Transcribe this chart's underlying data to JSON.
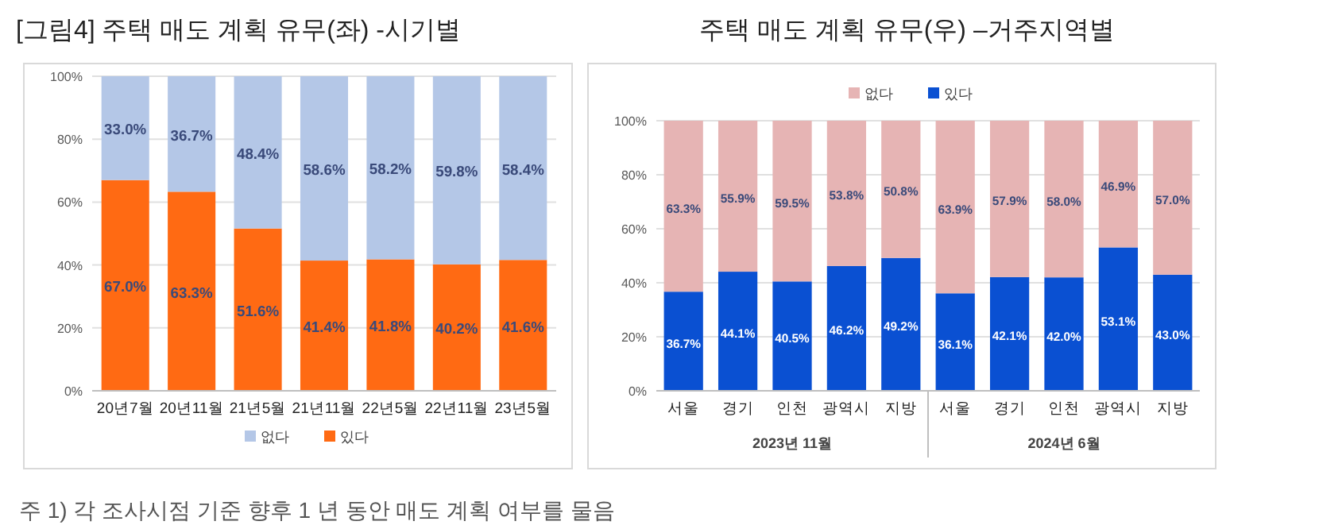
{
  "chart_data": [
    {
      "type": "bar",
      "stacked": true,
      "title": "[그림4] 주택 매도 계획 유무(좌) -시기별",
      "categories": [
        "20년7월",
        "20년11월",
        "21년5월",
        "21년11월",
        "22년5월",
        "22년11월",
        "23년5월"
      ],
      "series": [
        {
          "name": "있다",
          "color": "#ff6a13",
          "values": [
            67.0,
            63.3,
            51.6,
            41.4,
            41.8,
            40.2,
            41.6
          ],
          "value_labels": [
            "67.0%",
            "63.3%",
            "51.6%",
            "41.4%",
            "41.8%",
            "40.2%",
            "41.6%"
          ]
        },
        {
          "name": "없다",
          "color": "#b4c7e7",
          "values": [
            33.0,
            36.7,
            48.4,
            58.6,
            58.2,
            59.8,
            58.4
          ],
          "value_labels": [
            "33.0%",
            "36.7%",
            "48.4%",
            "58.6%",
            "58.2%",
            "59.8%",
            "58.4%"
          ]
        }
      ],
      "ylim": [
        0,
        100
      ],
      "yticks": [
        {
          "value": 0,
          "label": "0%"
        },
        {
          "value": 20,
          "label": "20%"
        },
        {
          "value": 40,
          "label": "40%"
        },
        {
          "value": 60,
          "label": "60%"
        },
        {
          "value": 80,
          "label": "80%"
        },
        {
          "value": 100,
          "label": "100%"
        }
      ],
      "grid": "y",
      "legend": "bottom",
      "annotations": [
        "주 1) 각 조사시점 기준 향후 1 년 동안 매도 계획 여부를 물음"
      ]
    },
    {
      "type": "bar",
      "stacked": true,
      "title": "주택 매도 계획 유무(우) –거주지역별",
      "categories": [
        "서울",
        "경기",
        "인천",
        "광역시",
        "지방",
        "서울",
        "경기",
        "인천",
        "광역시",
        "지방"
      ],
      "series": [
        {
          "name": "있다",
          "color": "#0a50d2",
          "values": [
            36.7,
            44.1,
            40.5,
            46.2,
            49.2,
            36.1,
            42.1,
            42.0,
            53.1,
            43.0
          ],
          "value_labels": [
            "36.7%",
            "44.1%",
            "40.5%",
            "46.2%",
            "49.2%",
            "36.1%",
            "42.1%",
            "42.0%",
            "53.1%",
            "43.0%"
          ]
        },
        {
          "name": "없다",
          "color": "#e6b4b4",
          "values": [
            63.3,
            55.9,
            59.5,
            53.8,
            50.8,
            63.9,
            57.9,
            58.0,
            46.9,
            57.0
          ],
          "value_labels": [
            "63.3%",
            "55.9%",
            "59.5%",
            "53.8%",
            "50.8%",
            "63.9%",
            "57.9%",
            "58.0%",
            "46.9%",
            "57.0%"
          ]
        }
      ],
      "ylim": [
        0,
        100
      ],
      "yticks": [
        {
          "value": 0,
          "label": "0%"
        },
        {
          "value": 20,
          "label": "20%"
        },
        {
          "value": 40,
          "label": "40%"
        },
        {
          "value": 60,
          "label": "60%"
        },
        {
          "value": 80,
          "label": "80%"
        },
        {
          "value": 100,
          "label": "100%"
        }
      ],
      "grid": "y",
      "legend": "top",
      "annotations": [
        "2023년 11월",
        "2024년 6월"
      ]
    }
  ]
}
